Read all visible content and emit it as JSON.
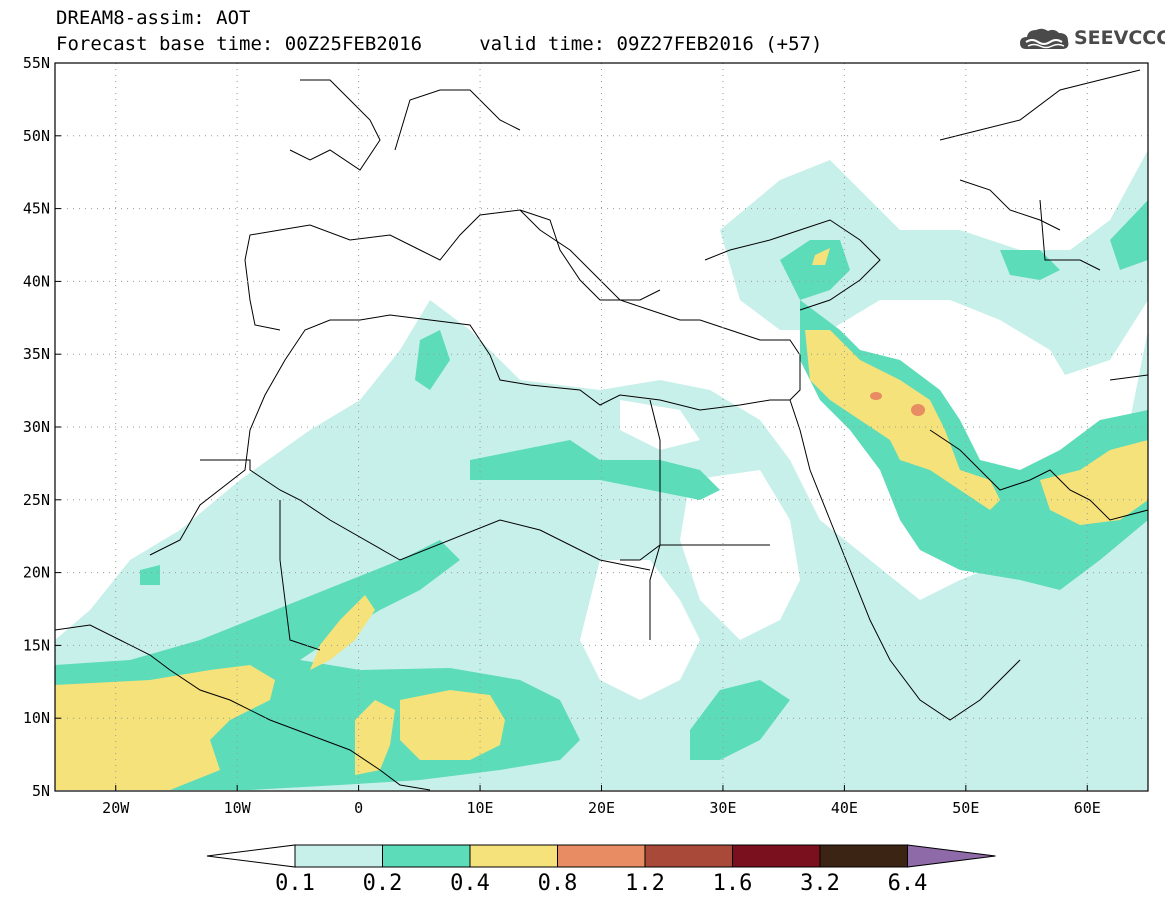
{
  "header": {
    "line1": "DREAM8-assim: AOT",
    "line2": "Forecast base time: 00Z25FEB2016     valid time: 09Z27FEB2016 (+57)"
  },
  "logo": {
    "text": "SEEVCCC",
    "icon": "cloud-icon"
  },
  "map": {
    "lon_range": [
      -25,
      65
    ],
    "lat_range": [
      5,
      55
    ],
    "lat_ticks": [
      "5N",
      "10N",
      "15N",
      "20N",
      "25N",
      "30N",
      "35N",
      "40N",
      "45N",
      "50N",
      "55N"
    ],
    "lon_ticks": [
      "20W",
      "10W",
      "0",
      "10E",
      "20E",
      "30E",
      "40E",
      "50E",
      "60E"
    ],
    "grid": "dotted"
  },
  "colorbar": {
    "labels": [
      "0.1",
      "0.2",
      "0.4",
      "0.8",
      "1.2",
      "1.6",
      "3.2",
      "6.4"
    ],
    "colors": [
      "#ffffff",
      "#c8f0ea",
      "#5ddcb9",
      "#f5e27a",
      "#e88c63",
      "#a9493a",
      "#7a0f1e",
      "#3b2414",
      "#8f6aa8"
    ]
  }
}
